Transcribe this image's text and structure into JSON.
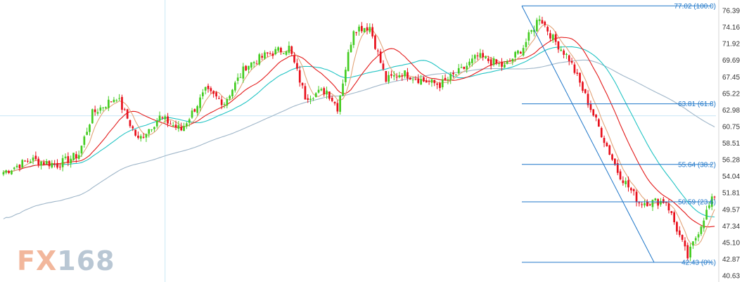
{
  "chart_data": {
    "type": "candlestick",
    "title": "",
    "xlabel": "",
    "ylabel": "",
    "ylim": [
      40.63,
      76.39
    ],
    "y_ticks": [
      "76.39",
      "74.16",
      "71.92",
      "69.69",
      "67.45",
      "65.22",
      "62.98",
      "60.75",
      "58.51",
      "56.28",
      "54.04",
      "51.81",
      "49.57",
      "47.34",
      "45.10",
      "42.87",
      "40.63"
    ],
    "grid": false,
    "crosshair": {
      "price": 62.2,
      "bar_index": 60
    },
    "colors": {
      "up": "#44cc22",
      "down": "#e8101c",
      "ma_fast": "#e3a57a",
      "ma_mid": "#e31b1b",
      "ma_slow": "#22c4c4",
      "ma_long": "#9fb6c9",
      "fib": "#1f77c9",
      "crosshair": "#c9e6f5"
    },
    "fibonacci": {
      "high": 77.02,
      "low": 42.43,
      "levels": [
        {
          "price": 77.02,
          "label": "77.02 (100.0)"
        },
        {
          "price": 63.81,
          "label": "63.81 (61.8)"
        },
        {
          "price": 55.64,
          "label": "55.64 (38.2)"
        },
        {
          "price": 50.59,
          "label": "50.59 (23.6)"
        },
        {
          "price": 42.43,
          "label": "42.43 (0%)"
        }
      ]
    },
    "series_anchors": [
      [
        0,
        54.6
      ],
      [
        10,
        56.3
      ],
      [
        20,
        55.6
      ],
      [
        28,
        57.0
      ],
      [
        33,
        62.5
      ],
      [
        42,
        64.8
      ],
      [
        50,
        58.9
      ],
      [
        58,
        62.0
      ],
      [
        66,
        60.3
      ],
      [
        75,
        65.5
      ],
      [
        82,
        64.0
      ],
      [
        90,
        68.9
      ],
      [
        98,
        70.5
      ],
      [
        106,
        71.4
      ],
      [
        112,
        64.8
      ],
      [
        120,
        65.6
      ],
      [
        124,
        63.3
      ],
      [
        130,
        74.0
      ],
      [
        136,
        74.2
      ],
      [
        142,
        67.0
      ],
      [
        148,
        68.0
      ],
      [
        156,
        66.9
      ],
      [
        162,
        66.4
      ],
      [
        170,
        68.3
      ],
      [
        176,
        70.2
      ],
      [
        186,
        68.8
      ],
      [
        193,
        71.5
      ],
      [
        199,
        75.6
      ],
      [
        204,
        72.6
      ],
      [
        210,
        69.9
      ],
      [
        220,
        61.5
      ],
      [
        228,
        54.7
      ],
      [
        236,
        50.5
      ],
      [
        246,
        50.7
      ],
      [
        254,
        43.1
      ],
      [
        260,
        48.5
      ],
      [
        264,
        51.5
      ]
    ],
    "bar_count": 265
  }
}
